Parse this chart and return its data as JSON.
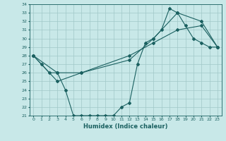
{
  "xlabel": "Humidex (Indice chaleur)",
  "ylabel": "",
  "background_color": "#c8e8e8",
  "line_color": "#1a6060",
  "grid_color": "#a0c8c8",
  "xlim": [
    -0.5,
    23.5
  ],
  "ylim": [
    21,
    34
  ],
  "xticks": [
    0,
    1,
    2,
    3,
    4,
    5,
    6,
    7,
    8,
    9,
    10,
    11,
    12,
    13,
    14,
    15,
    16,
    17,
    18,
    19,
    20,
    21,
    22,
    23
  ],
  "yticks": [
    21,
    22,
    23,
    24,
    25,
    26,
    27,
    28,
    29,
    30,
    31,
    32,
    33,
    34
  ],
  "line1_x": [
    0,
    1,
    2,
    3,
    4,
    5,
    6,
    7,
    8,
    9,
    10,
    11,
    12,
    13,
    14,
    15,
    16,
    17,
    18,
    19,
    20,
    21,
    22,
    23
  ],
  "line1_y": [
    28,
    27,
    26,
    26,
    24,
    21,
    21,
    21,
    21,
    21,
    21,
    22,
    22.5,
    27,
    29.5,
    30,
    31,
    33.5,
    33,
    31.5,
    30,
    29.5,
    29,
    29
  ],
  "line2_x": [
    0,
    3,
    6,
    12,
    15,
    18,
    21,
    23
  ],
  "line2_y": [
    28,
    25,
    26,
    28,
    29.5,
    31,
    31.5,
    29
  ],
  "line3_x": [
    0,
    3,
    6,
    12,
    15,
    18,
    21,
    23
  ],
  "line3_y": [
    28,
    26,
    26,
    27.5,
    30,
    33,
    32,
    29
  ],
  "marker": "D",
  "markersize": 2,
  "linewidth": 0.8,
  "tick_fontsize": 4.5,
  "xlabel_fontsize": 6.0
}
